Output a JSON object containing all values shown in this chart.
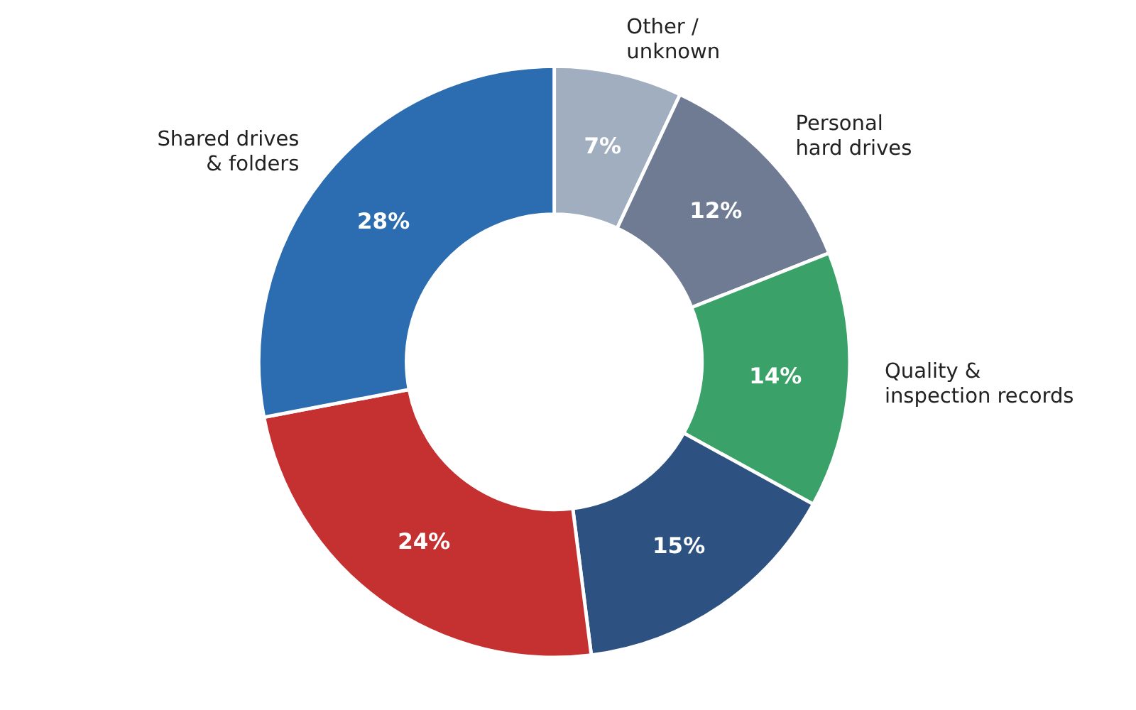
{
  "chart_data": {
    "type": "donut",
    "categories": [
      "Other /\nunknown",
      "Personal\nhard drives",
      "Quality &\ninspection records",
      null,
      null,
      "Shared drives\n& folders"
    ],
    "values": [
      7,
      12,
      14,
      15,
      24,
      28
    ],
    "value_labels": [
      "7%",
      "12%",
      "14%",
      "15%",
      "24%",
      "28%"
    ],
    "colors": [
      "#a0aec0",
      "#6e7b93",
      "#3aa169",
      "#2d5282",
      "#c53030",
      "#2c6cb0"
    ]
  }
}
